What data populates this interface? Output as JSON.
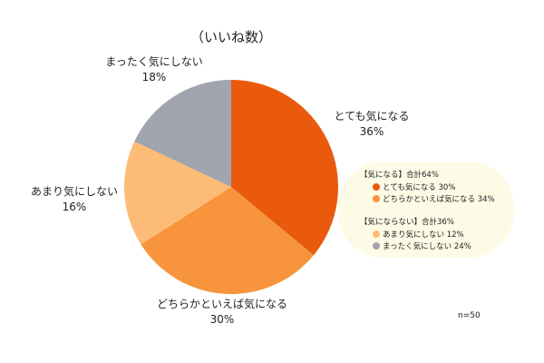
{
  "chart_data": {
    "type": "pie",
    "title": "（いいね数）",
    "slices": [
      {
        "label": "とても気になる",
        "value": 36,
        "display": "36%",
        "color": "#E95A0C"
      },
      {
        "label": "どちらかといえば気になる",
        "value": 30,
        "display": "30%",
        "color": "#F8943C"
      },
      {
        "label": "あまり気にしない",
        "value": 16,
        "display": "16%",
        "color": "#FDBB78"
      },
      {
        "label": "まったく気にしない",
        "value": 18,
        "display": "18%",
        "color": "#A0A4AE"
      }
    ],
    "start": "top",
    "direction": "clockwise",
    "note": "n=50",
    "legend": {
      "groups": [
        {
          "header": "【気になる】合計64%",
          "items": [
            {
              "text": "とても気になる 30%",
              "color": "#E95A0C"
            },
            {
              "text": "どちらかといえば気になる 34%",
              "color": "#F8943C"
            }
          ]
        },
        {
          "header": "【気にならない】合計36%",
          "items": [
            {
              "text": "あまり気にしない 12%",
              "color": "#FDBB78"
            },
            {
              "text": "まったく気にしない 24%",
              "color": "#A0A4AE"
            }
          ]
        }
      ],
      "background": "#FDFBE6"
    }
  }
}
